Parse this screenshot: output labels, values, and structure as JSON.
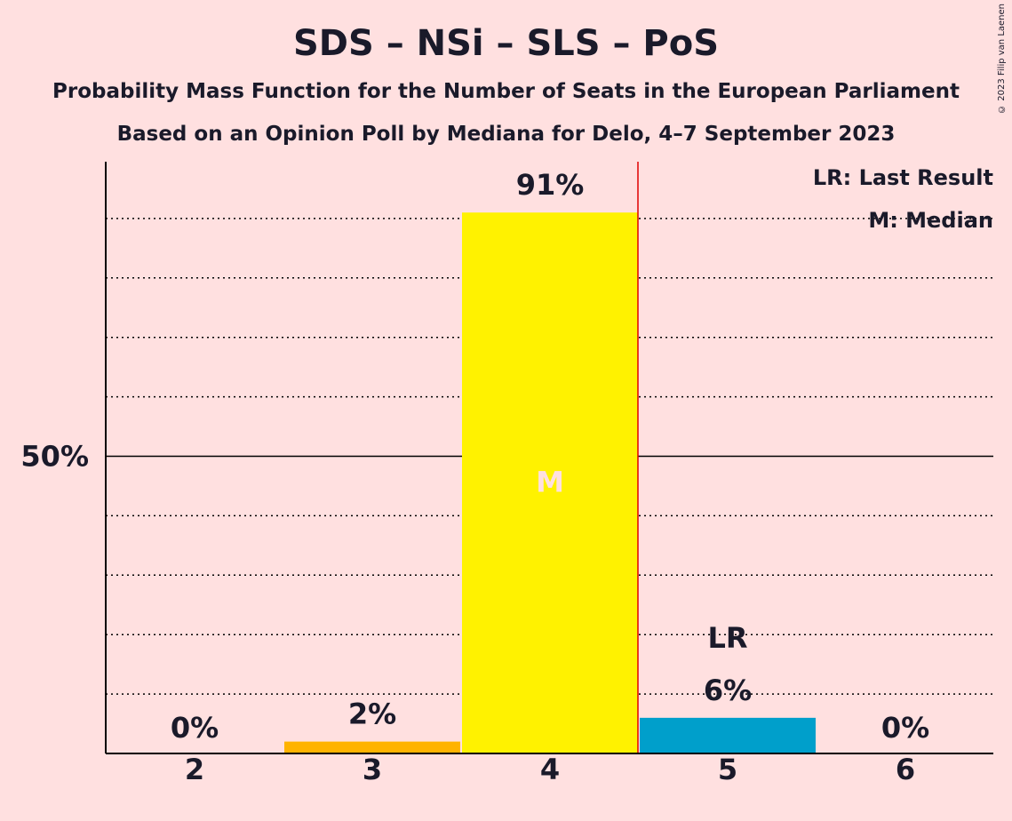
{
  "title": "SDS – NSi – SLS – PoS",
  "subtitle_1": "Probability Mass Function for the Number of Seats in the European Parliament",
  "subtitle_2": "Based on an Opinion Poll by Mediana for Delo, 4–7 September 2023",
  "copyright": "© 2023 Filip van Laenen",
  "legend": {
    "last_result": "LR: Last Result",
    "median": "M: Median"
  },
  "colors": {
    "background": "#FFE0E0",
    "last_result_line": "#E00000",
    "median_label": "#FFE0E0"
  },
  "chart_data": {
    "type": "bar",
    "categories": [
      "2",
      "3",
      "4",
      "5",
      "6"
    ],
    "values": [
      0,
      2,
      91,
      6,
      0
    ],
    "value_labels": [
      "0%",
      "2%",
      "91%",
      "6%",
      "0%"
    ],
    "bar_colors": [
      "#FFB300",
      "#FFB300",
      "#FFF200",
      "#009FCB",
      "#009FCB"
    ],
    "ylim": [
      0,
      100
    ],
    "y_tick_label": "50%",
    "y_tick_value": 50,
    "gridline_step": 10,
    "median_category": "4",
    "median_marker": "M",
    "last_result_category": "5",
    "last_result_marker": "LR",
    "grid": true,
    "legend_placement": "top-right"
  }
}
